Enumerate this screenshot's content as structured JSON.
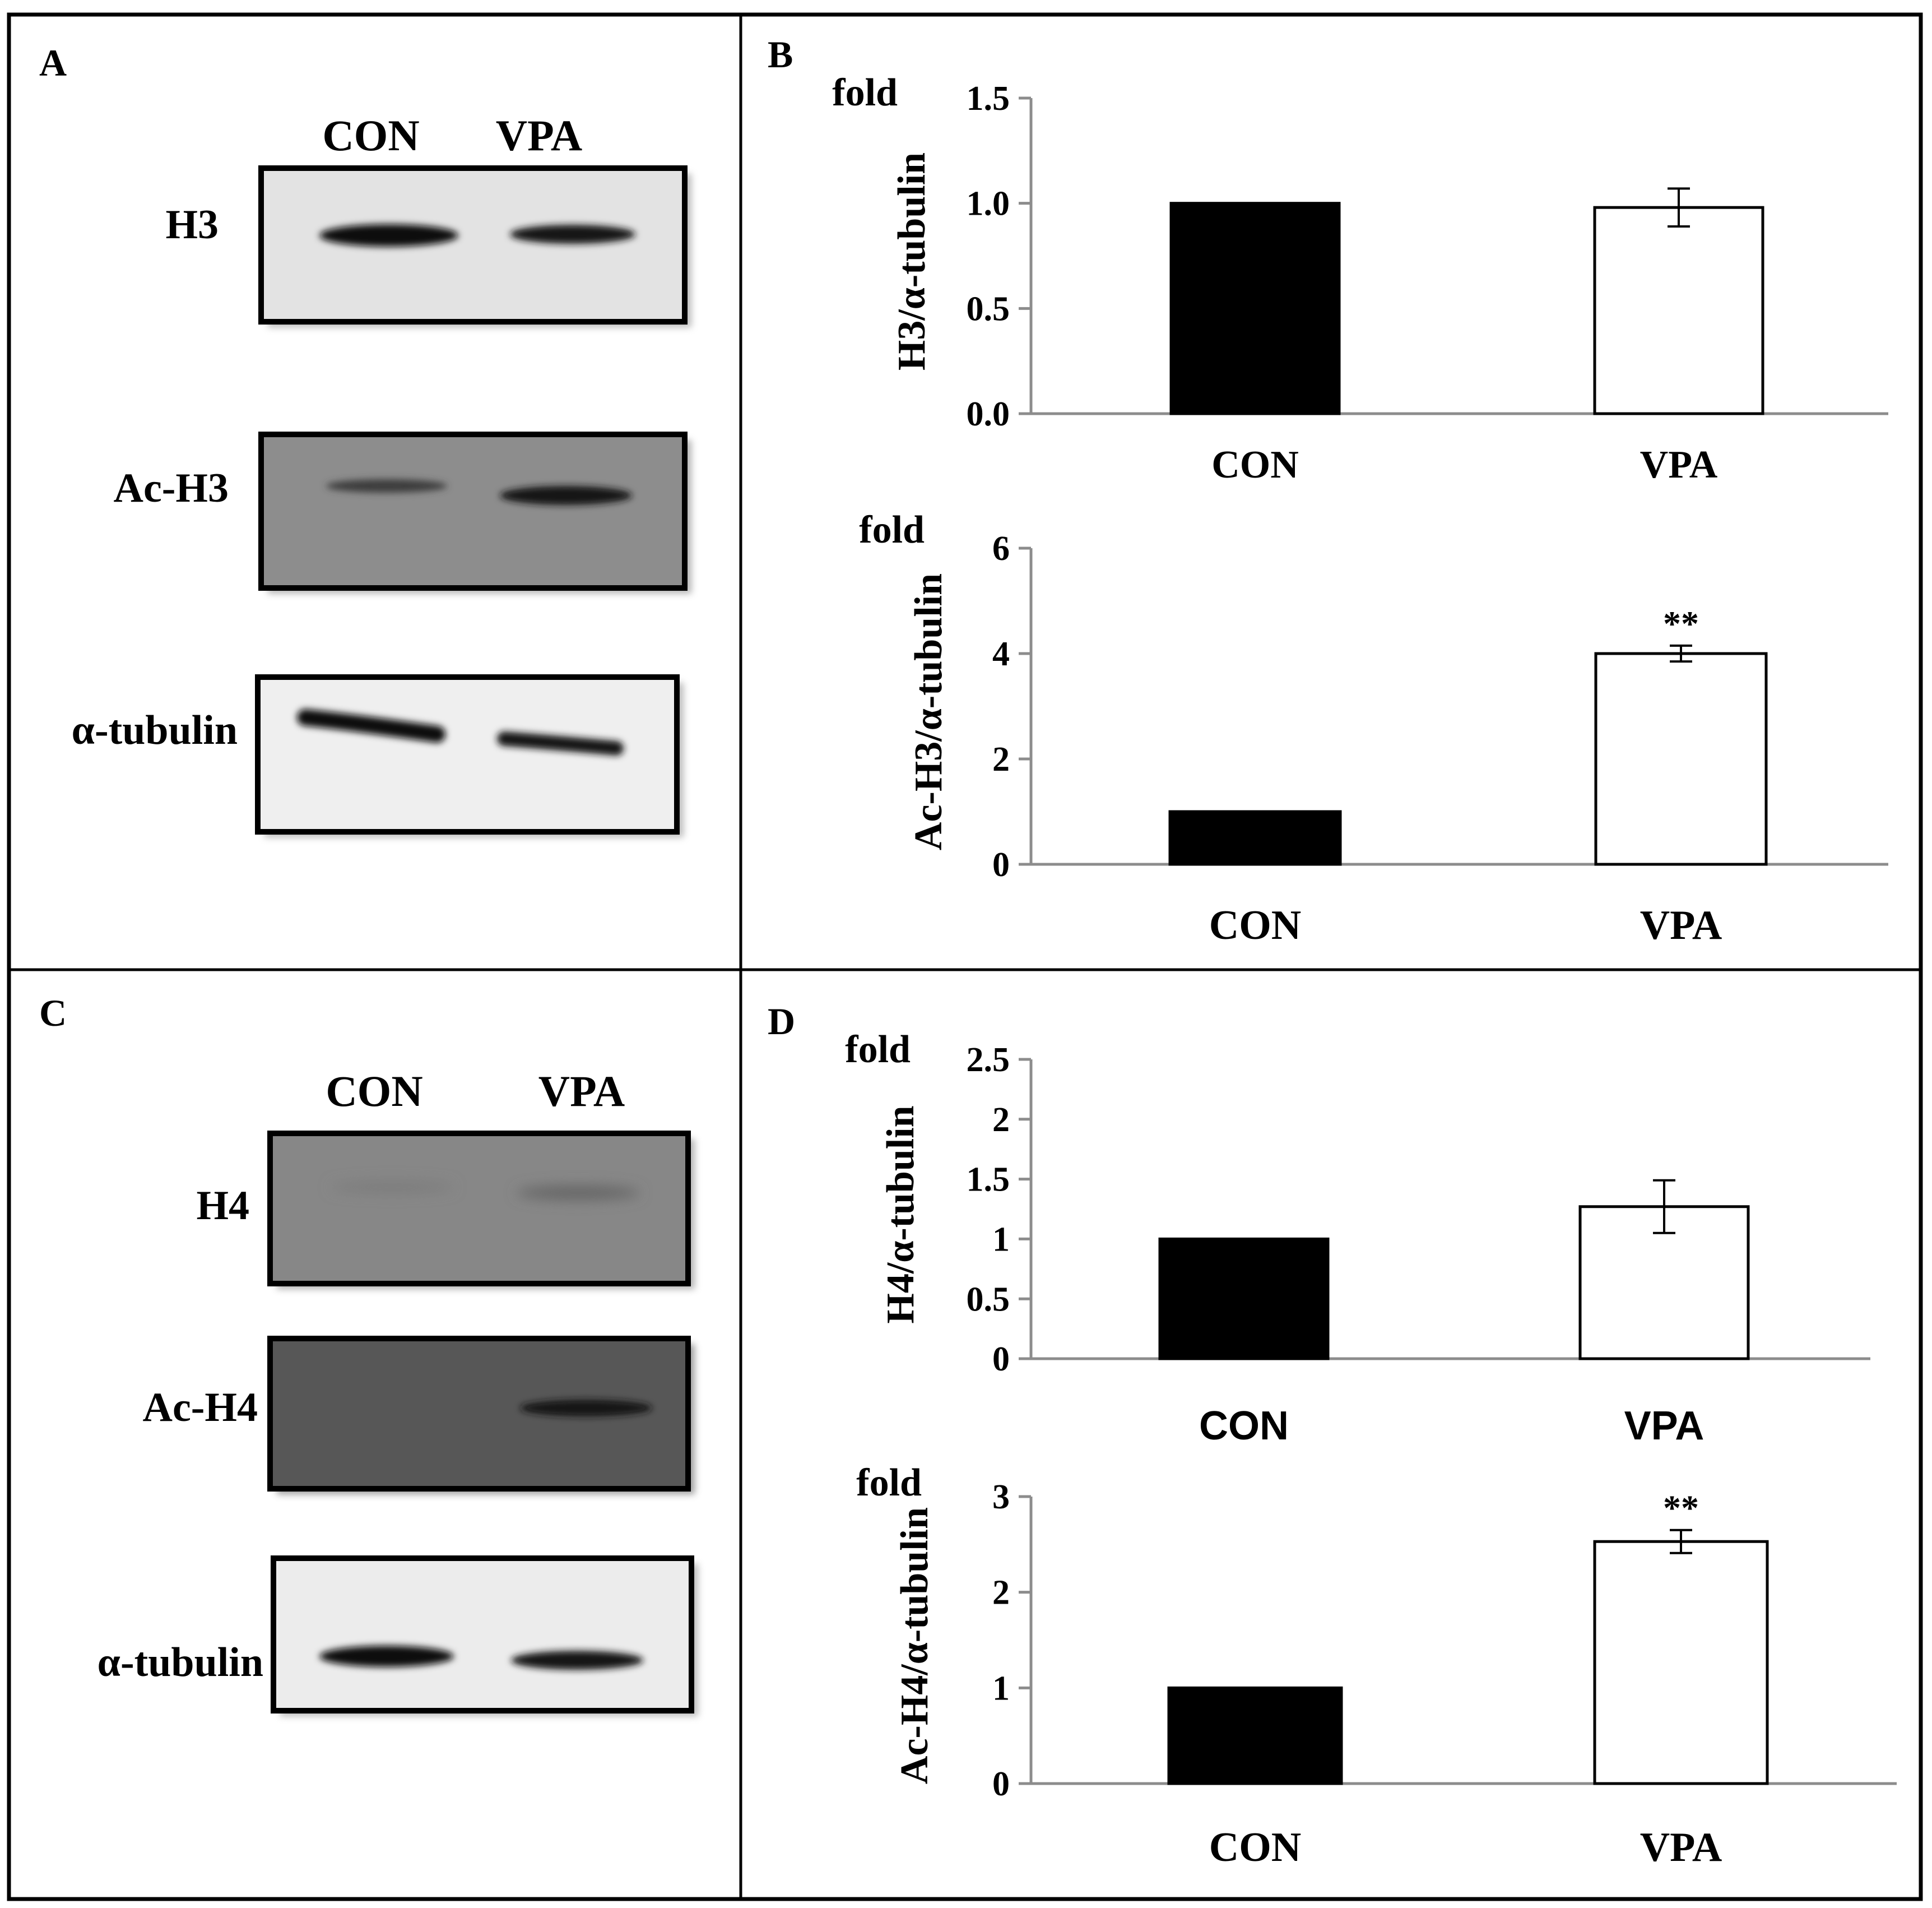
{
  "panels": {
    "a": {
      "letter": "A",
      "lanes": [
        "CON",
        "VPA"
      ],
      "blots": [
        "H3",
        "Ac-H3",
        "α-tubulin"
      ]
    },
    "b": {
      "letter": "B"
    },
    "c": {
      "letter": "C",
      "lanes": [
        "CON",
        "VPA"
      ],
      "blots": [
        "H4",
        "Ac-H4",
        "α-tubulin"
      ]
    },
    "d": {
      "letter": "D"
    }
  },
  "colors": {
    "con_bar": "#000000",
    "vpa_bar": "#ffffff",
    "axis": "#8c8c8c",
    "frame": "#000000"
  },
  "chart_data": [
    {
      "type": "bar",
      "panel": "B",
      "categories": [
        "CON",
        "VPA"
      ],
      "values": [
        1.0,
        0.98
      ],
      "errors": [
        0,
        0.09
      ],
      "significance": [
        "",
        ""
      ],
      "ylabel": "H3/α-tubulin",
      "unit_label": "fold",
      "ylim": [
        0,
        1.5
      ],
      "ticks": [
        "0.0",
        "0.5",
        "1.0",
        "1.5"
      ],
      "grid": false
    },
    {
      "type": "bar",
      "panel": "B",
      "categories": [
        "CON",
        "VPA"
      ],
      "values": [
        1.0,
        4.0
      ],
      "errors": [
        0,
        0.15
      ],
      "significance": [
        "",
        "**"
      ],
      "ylabel": "Ac-H3/α-tubulin",
      "unit_label": "fold",
      "ylim": [
        0,
        6
      ],
      "ticks": [
        "0",
        "2",
        "4",
        "6"
      ],
      "grid": false
    },
    {
      "type": "bar",
      "panel": "D",
      "categories": [
        "CON",
        "VPA"
      ],
      "values": [
        1.0,
        1.27
      ],
      "errors": [
        0,
        0.22
      ],
      "significance": [
        "",
        ""
      ],
      "ylabel": "H4/α-tubulin",
      "unit_label": "fold",
      "ylim": [
        0,
        2.5
      ],
      "ticks": [
        "0",
        "0.5",
        "1",
        "1.5",
        "2",
        "2.5"
      ],
      "grid": false
    },
    {
      "type": "bar",
      "panel": "D",
      "categories": [
        "CON",
        "VPA"
      ],
      "values": [
        1.0,
        2.53
      ],
      "errors": [
        0,
        0.12
      ],
      "significance": [
        "",
        "**"
      ],
      "ylabel": "Ac-H4/α-tubulin",
      "unit_label": "fold",
      "ylim": [
        0,
        3
      ],
      "ticks": [
        "0",
        "1",
        "2",
        "3"
      ],
      "grid": false
    }
  ]
}
